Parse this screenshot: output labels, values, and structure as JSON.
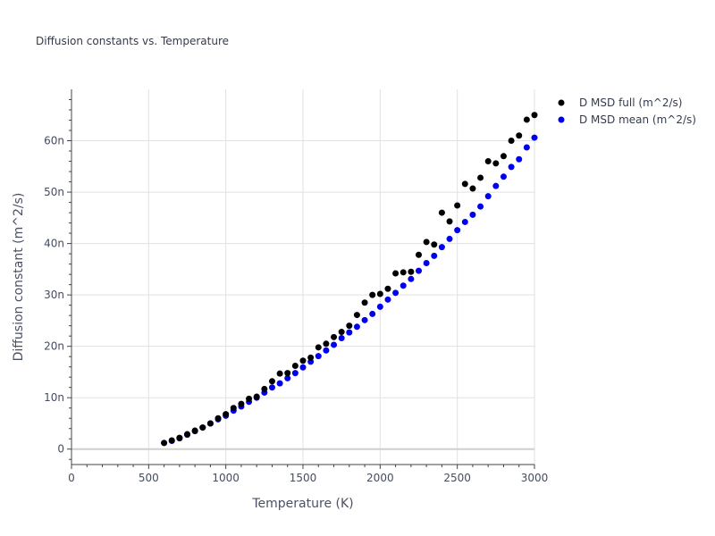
{
  "chart_data": {
    "type": "scatter",
    "title": "Diffusion constants vs. Temperature",
    "xlabel": "Temperature (K)",
    "ylabel": "Diffusion constant (m^2/s)",
    "xlim": [
      0,
      3000
    ],
    "ylim": [
      -3,
      70
    ],
    "x_ticks": [
      0,
      500,
      1000,
      1500,
      2000,
      2500,
      3000
    ],
    "x_tick_labels": [
      "0",
      "500",
      "1000",
      "1500",
      "2000",
      "2500",
      "3000"
    ],
    "y_ticks": [
      0,
      10,
      20,
      30,
      40,
      50,
      60
    ],
    "y_tick_labels": [
      "0",
      "10n",
      "20n",
      "30n",
      "40n",
      "50n",
      "60n"
    ],
    "y_unit_note": "nano scale",
    "grid": true,
    "legend_position": "top-right outside",
    "series": [
      {
        "name": "D MSD full (m^2/s)",
        "color": "#000000",
        "x": [
          600,
          650,
          700,
          750,
          800,
          850,
          900,
          950,
          1000,
          1050,
          1100,
          1150,
          1200,
          1250,
          1300,
          1350,
          1400,
          1450,
          1500,
          1550,
          1600,
          1650,
          1700,
          1750,
          1800,
          1850,
          1900,
          1950,
          2000,
          2050,
          2100,
          2150,
          2200,
          2250,
          2300,
          2350,
          2400,
          2450,
          2500,
          2550,
          2600,
          2650,
          2700,
          2750,
          2800,
          2850,
          2900,
          2950,
          3000
        ],
        "y": [
          1.2,
          1.7,
          2.2,
          2.9,
          3.6,
          4.2,
          5.0,
          6.0,
          6.8,
          8.0,
          8.8,
          9.8,
          10.2,
          11.7,
          13.2,
          14.7,
          14.8,
          16.2,
          17.2,
          17.8,
          19.8,
          20.5,
          21.8,
          22.8,
          24.0,
          26.1,
          28.5,
          30.0,
          30.2,
          31.2,
          34.2,
          34.4,
          34.5,
          37.8,
          40.3,
          39.8,
          46.0,
          44.3,
          47.4,
          51.6,
          50.7,
          52.8,
          56.0,
          55.6,
          57.0,
          60.0,
          61.0,
          64.1,
          65.0
        ]
      },
      {
        "name": "D MSD mean (m^2/s)",
        "color": "#0000ee",
        "x": [
          600,
          650,
          700,
          750,
          800,
          850,
          900,
          950,
          1000,
          1050,
          1100,
          1150,
          1200,
          1250,
          1300,
          1350,
          1400,
          1450,
          1500,
          1550,
          1600,
          1650,
          1700,
          1750,
          1800,
          1850,
          1900,
          1950,
          2000,
          2050,
          2100,
          2150,
          2200,
          2250,
          2300,
          2350,
          2400,
          2450,
          2500,
          2550,
          2600,
          2650,
          2700,
          2750,
          2800,
          2850,
          2900,
          2950,
          3000
        ],
        "y": [
          1.2,
          1.6,
          2.1,
          2.8,
          3.5,
          4.2,
          5.0,
          5.8,
          6.5,
          7.5,
          8.3,
          9.2,
          10.0,
          11.0,
          12.0,
          12.8,
          13.8,
          14.8,
          15.9,
          17.0,
          18.1,
          19.2,
          20.3,
          21.6,
          22.7,
          23.8,
          25.1,
          26.3,
          27.7,
          29.1,
          30.4,
          31.8,
          33.1,
          34.7,
          36.2,
          37.6,
          39.3,
          40.9,
          42.6,
          44.2,
          45.6,
          47.2,
          49.2,
          51.2,
          53.0,
          54.9,
          56.4,
          58.7,
          60.6
        ]
      }
    ]
  }
}
